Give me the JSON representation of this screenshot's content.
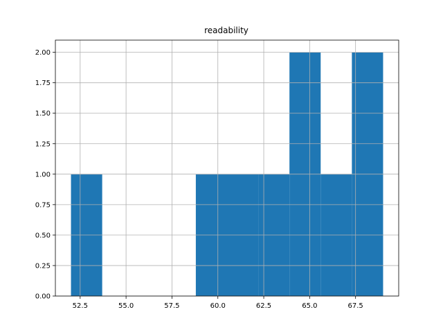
{
  "chart_data": {
    "type": "bar",
    "title": "readability",
    "xlabel": "",
    "ylabel": "",
    "bins": [
      {
        "x0": 52.0,
        "x1": 53.7,
        "count": 1
      },
      {
        "x0": 53.7,
        "x1": 55.4,
        "count": 0
      },
      {
        "x0": 55.4,
        "x1": 57.1,
        "count": 0
      },
      {
        "x0": 57.1,
        "x1": 58.8,
        "count": 0
      },
      {
        "x0": 58.8,
        "x1": 60.5,
        "count": 1
      },
      {
        "x0": 60.5,
        "x1": 62.2,
        "count": 1
      },
      {
        "x0": 62.2,
        "x1": 63.9,
        "count": 1
      },
      {
        "x0": 63.9,
        "x1": 65.6,
        "count": 2
      },
      {
        "x0": 65.6,
        "x1": 67.3,
        "count": 1
      },
      {
        "x0": 67.3,
        "x1": 69.0,
        "count": 2
      }
    ],
    "xlim": [
      51.15,
      69.85
    ],
    "ylim": [
      0,
      2.1
    ],
    "xticks": [
      52.5,
      55.0,
      57.5,
      60.0,
      62.5,
      65.0,
      67.5
    ],
    "xtick_labels": [
      "52.5",
      "55.0",
      "57.5",
      "60.0",
      "62.5",
      "65.0",
      "67.5"
    ],
    "yticks": [
      0,
      0.25,
      0.5,
      0.75,
      1.0,
      1.25,
      1.5,
      1.75,
      2.0
    ],
    "ytick_labels": [
      "0.00",
      "0.25",
      "0.50",
      "0.75",
      "1.00",
      "1.25",
      "1.50",
      "1.75",
      "2.00"
    ],
    "grid": true,
    "bar_color": "#1f77b4"
  }
}
